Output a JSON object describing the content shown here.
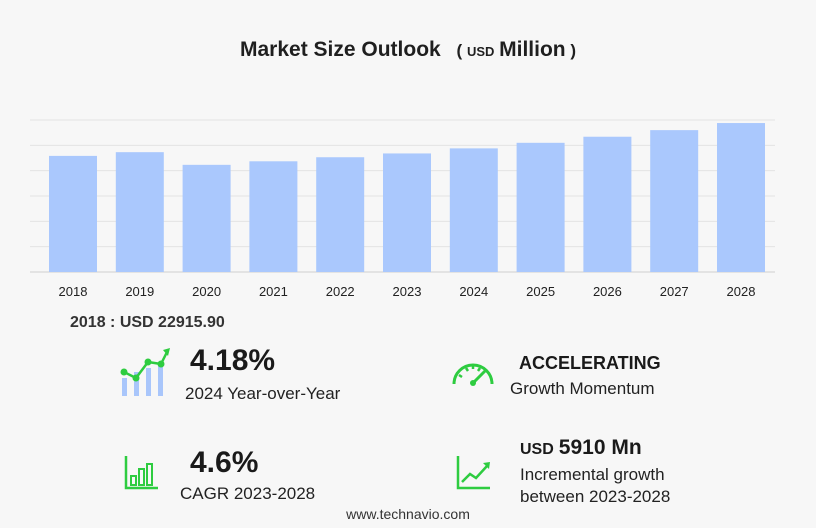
{
  "chart_data": {
    "type": "bar",
    "title": "Market Size Outlook",
    "unit_prefix": "USD",
    "unit_suffix": "Million",
    "categories": [
      "2018",
      "2019",
      "2020",
      "2021",
      "2022",
      "2023",
      "2024",
      "2025",
      "2026",
      "2027",
      "2028"
    ],
    "values": [
      22915.9,
      23650,
      21150,
      21850,
      22650,
      23400,
      24400,
      25500,
      26700,
      28000,
      29400
    ],
    "ylim": [
      0,
      30000
    ],
    "grid": true,
    "bar_color": "#aac8fd"
  },
  "base_year": {
    "text": "2018 : USD  22915.90"
  },
  "stats": {
    "yoy_value": "4.18%",
    "yoy_label": "2024 Year-over-Year",
    "momentum_value": "ACCELERATING",
    "momentum_label": "Growth Momentum",
    "cagr_value": "4.6%",
    "cagr_label": "CAGR 2023-2028",
    "incr_prefix": "USD",
    "incr_value": "5910 Mn",
    "incr_label_1": "Incremental growth",
    "incr_label_2": "between 2023-2028"
  },
  "icons": {
    "yoy": "bar-trend-icon",
    "momentum": "speedometer-icon",
    "cagr": "bar-chart-icon",
    "incremental": "trend-line-icon"
  },
  "colors": {
    "accent_green": "#2ecc40",
    "bar": "#aac8fd"
  },
  "footer": "www.technavio.com"
}
